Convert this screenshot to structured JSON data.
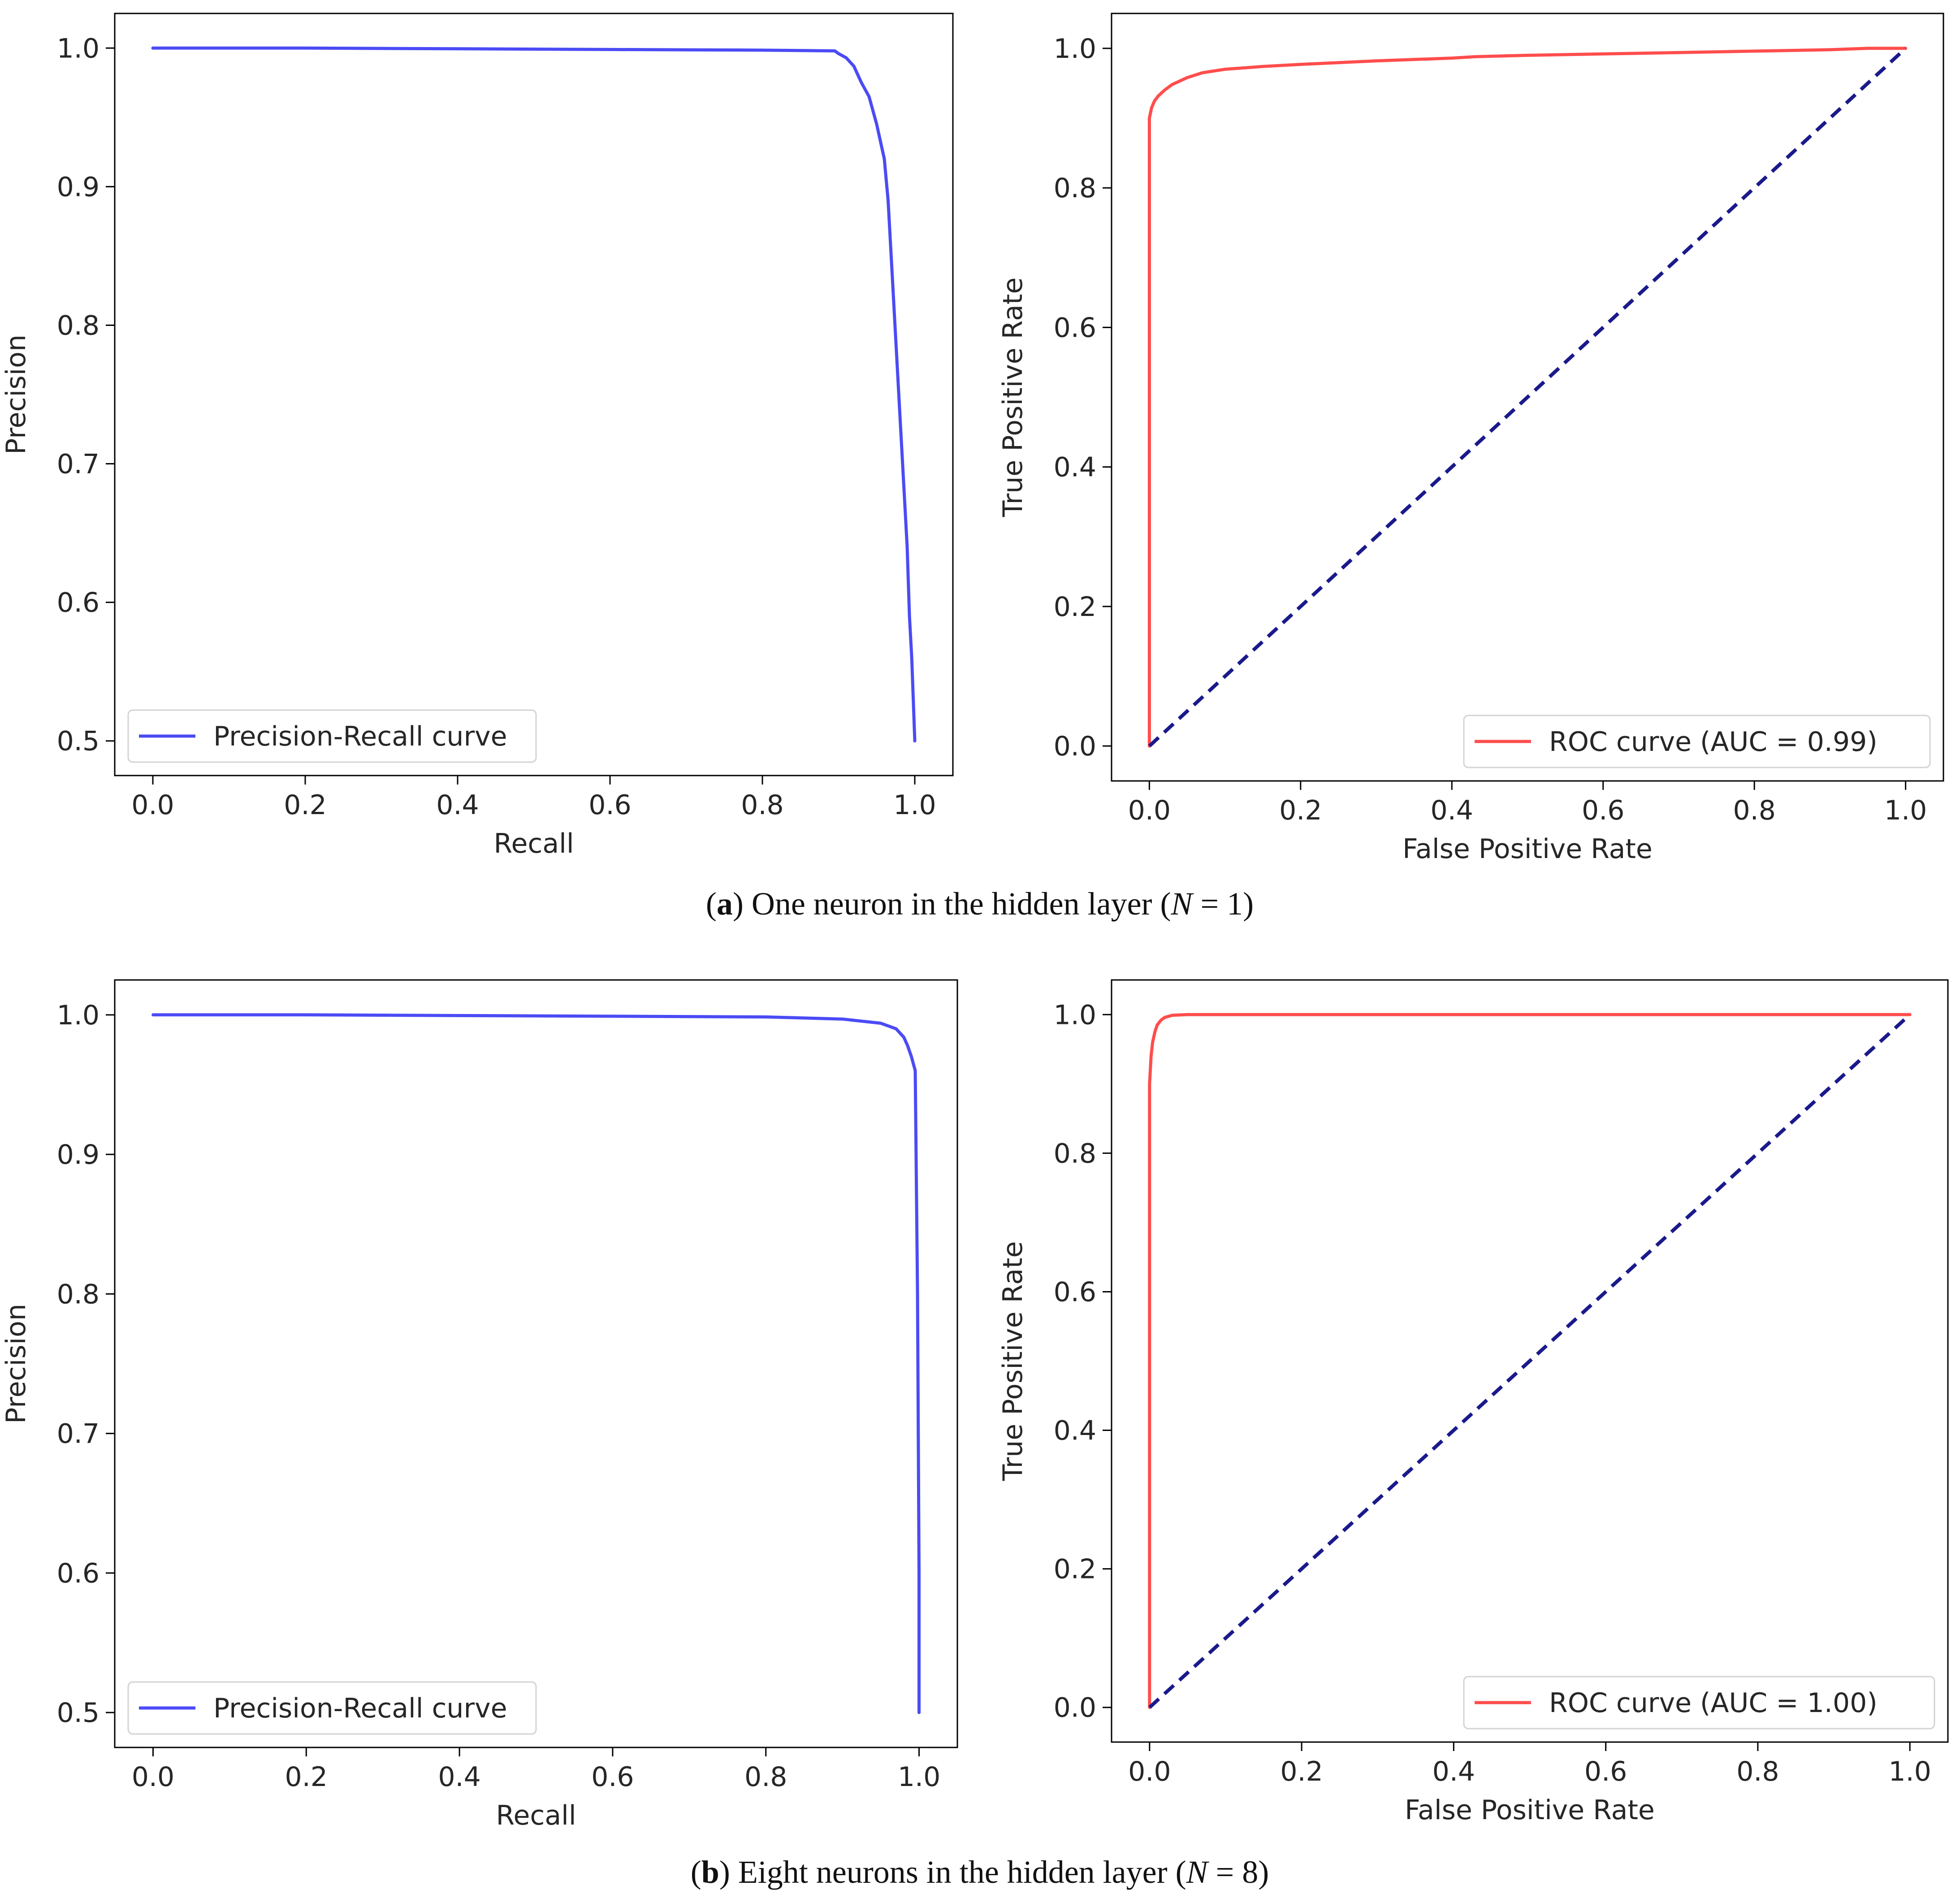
{
  "colors": {
    "pr_curve": "#4b4bf5",
    "roc_curve": "#ff4d4d",
    "diagonal": "#1a1a8c",
    "axes": "#000000",
    "text": "#262626",
    "legend_border": "#d3d3d3"
  },
  "chart_data": [
    {
      "id": "a-pr",
      "type": "line",
      "xlabel": "Recall",
      "ylabel": "Precision",
      "xlim": [
        -0.05,
        1.05
      ],
      "ylim": [
        0.475,
        1.025
      ],
      "xticks": [
        0.0,
        0.2,
        0.4,
        0.6,
        0.8,
        1.0
      ],
      "xtick_labels": [
        "0.0",
        "0.2",
        "0.4",
        "0.6",
        "0.8",
        "1.0"
      ],
      "yticks": [
        0.5,
        0.6,
        0.7,
        0.8,
        0.9,
        1.0
      ],
      "ytick_labels": [
        "0.5",
        "0.6",
        "0.7",
        "0.8",
        "0.9",
        "1.0"
      ],
      "legend_position": "lower-left",
      "series": [
        {
          "name": "Precision-Recall curve",
          "color": "#4b4bf5",
          "dashed": false,
          "x": [
            0.0,
            0.2,
            0.4,
            0.6,
            0.8,
            0.895,
            0.9,
            0.91,
            0.92,
            0.93,
            0.94,
            0.95,
            0.96,
            0.965,
            0.97,
            0.975,
            0.98,
            0.985,
            0.99,
            0.993,
            0.996,
            0.998,
            1.0
          ],
          "y": [
            1.0,
            1.0,
            0.9995,
            0.999,
            0.9985,
            0.998,
            0.996,
            0.993,
            0.987,
            0.975,
            0.965,
            0.945,
            0.92,
            0.89,
            0.84,
            0.79,
            0.74,
            0.69,
            0.64,
            0.59,
            0.56,
            0.53,
            0.5
          ]
        }
      ]
    },
    {
      "id": "a-roc",
      "type": "line",
      "xlabel": "False Positive Rate",
      "ylabel": "True Positive Rate",
      "xlim": [
        -0.05,
        1.05
      ],
      "ylim": [
        -0.05,
        1.05
      ],
      "xticks": [
        0.0,
        0.2,
        0.4,
        0.6,
        0.8,
        1.0
      ],
      "xtick_labels": [
        "0.0",
        "0.2",
        "0.4",
        "0.6",
        "0.8",
        "1.0"
      ],
      "yticks": [
        0.0,
        0.2,
        0.4,
        0.6,
        0.8,
        1.0
      ],
      "ytick_labels": [
        "0.0",
        "0.2",
        "0.4",
        "0.6",
        "0.8",
        "1.0"
      ],
      "legend_position": "lower-right",
      "series": [
        {
          "name": "ROC curve (AUC = 0.99)",
          "color": "#ff4d4d",
          "dashed": false,
          "x": [
            0.0,
            0.0,
            0.003,
            0.007,
            0.012,
            0.02,
            0.03,
            0.05,
            0.07,
            0.1,
            0.15,
            0.2,
            0.3,
            0.4,
            0.43,
            0.5,
            0.6,
            0.7,
            0.8,
            0.9,
            0.95,
            1.0
          ],
          "y": [
            0.0,
            0.9,
            0.915,
            0.925,
            0.932,
            0.94,
            0.948,
            0.958,
            0.965,
            0.97,
            0.974,
            0.977,
            0.982,
            0.986,
            0.988,
            0.99,
            0.992,
            0.994,
            0.996,
            0.998,
            1.0,
            1.0
          ]
        },
        {
          "name": "",
          "color": "#1a1a8c",
          "dashed": true,
          "x": [
            0.0,
            1.0
          ],
          "y": [
            0.0,
            1.0
          ]
        }
      ]
    },
    {
      "id": "b-pr",
      "type": "line",
      "xlabel": "Recall",
      "ylabel": "Precision",
      "xlim": [
        -0.05,
        1.05
      ],
      "ylim": [
        0.475,
        1.025
      ],
      "xticks": [
        0.0,
        0.2,
        0.4,
        0.6,
        0.8,
        1.0
      ],
      "xtick_labels": [
        "0.0",
        "0.2",
        "0.4",
        "0.6",
        "0.8",
        "1.0"
      ],
      "yticks": [
        0.5,
        0.6,
        0.7,
        0.8,
        0.9,
        1.0
      ],
      "ytick_labels": [
        "0.5",
        "0.6",
        "0.7",
        "0.8",
        "0.9",
        "1.0"
      ],
      "legend_position": "lower-left",
      "series": [
        {
          "name": "Precision-Recall curve",
          "color": "#4b4bf5",
          "dashed": false,
          "x": [
            0.0,
            0.2,
            0.4,
            0.6,
            0.8,
            0.9,
            0.95,
            0.97,
            0.98,
            0.985,
            0.99,
            0.995,
            0.998,
            1.0,
            1.0
          ],
          "y": [
            1.0,
            1.0,
            0.9995,
            0.999,
            0.9985,
            0.997,
            0.994,
            0.99,
            0.984,
            0.978,
            0.97,
            0.96,
            0.8,
            0.6,
            0.5
          ]
        }
      ]
    },
    {
      "id": "b-roc",
      "type": "line",
      "xlabel": "False Positive Rate",
      "ylabel": "True Positive Rate",
      "xlim": [
        -0.05,
        1.05
      ],
      "ylim": [
        -0.05,
        1.05
      ],
      "xticks": [
        0.0,
        0.2,
        0.4,
        0.6,
        0.8,
        1.0
      ],
      "xtick_labels": [
        "0.0",
        "0.2",
        "0.4",
        "0.6",
        "0.8",
        "1.0"
      ],
      "yticks": [
        0.0,
        0.2,
        0.4,
        0.6,
        0.8,
        1.0
      ],
      "ytick_labels": [
        "0.0",
        "0.2",
        "0.4",
        "0.6",
        "0.8",
        "1.0"
      ],
      "legend_position": "lower-right",
      "series": [
        {
          "name": "ROC curve (AUC = 1.00)",
          "color": "#ff4d4d",
          "dashed": false,
          "x": [
            0.0,
            0.0,
            0.002,
            0.004,
            0.007,
            0.01,
            0.015,
            0.02,
            0.03,
            0.05,
            0.1,
            0.3,
            0.6,
            1.0
          ],
          "y": [
            0.0,
            0.9,
            0.94,
            0.96,
            0.975,
            0.985,
            0.992,
            0.996,
            0.999,
            1.0,
            1.0,
            1.0,
            1.0,
            1.0
          ]
        },
        {
          "name": "",
          "color": "#1a1a8c",
          "dashed": true,
          "x": [
            0.0,
            1.0
          ],
          "y": [
            0.0,
            1.0
          ]
        }
      ]
    }
  ],
  "captions": {
    "a": {
      "open": "(",
      "letter": "a",
      "close": ") ",
      "text": "One neuron in the hidden layer (",
      "var": "N",
      "eq": " = 1)"
    },
    "b": {
      "open": "(",
      "letter": "b",
      "close": ") ",
      "text": "Eight neurons in the hidden layer (",
      "var": "N",
      "eq": " = 8)"
    }
  }
}
